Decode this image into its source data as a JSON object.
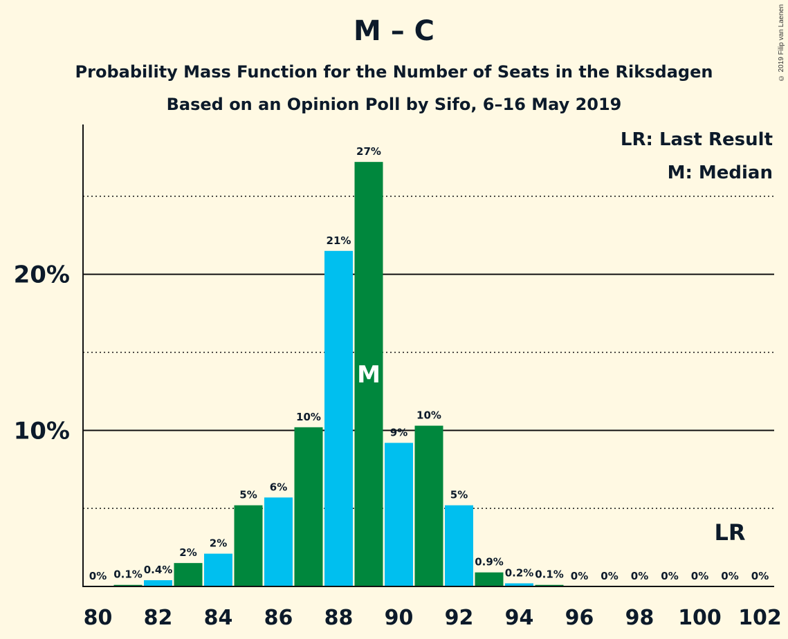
{
  "colors": {
    "background": "#fff9e3",
    "green": "#00873d",
    "blue": "#00bfef",
    "text": "#0c1a2a"
  },
  "copyright": "© 2019 Filip van Laenen",
  "chart_data": {
    "type": "bar",
    "title": "M – C",
    "subtitle": "Probability Mass Function for the Number of Seats in the Riksdagen",
    "subtitle2": "Based on an Opinion Poll by Sifo, 6–16 May 2019",
    "x": [
      80,
      81,
      82,
      83,
      84,
      85,
      86,
      87,
      88,
      89,
      90,
      91,
      92,
      93,
      94,
      95,
      96,
      97,
      98,
      99,
      100,
      101,
      102
    ],
    "values": [
      0,
      0.1,
      0.4,
      1.5,
      2.1,
      5.2,
      5.7,
      10.2,
      21.5,
      27.2,
      9.2,
      10.3,
      5.2,
      0.9,
      0.2,
      0.1,
      0,
      0,
      0,
      0,
      0,
      0,
      0
    ],
    "labels": [
      "0%",
      "0.1%",
      "0.4%",
      "2%",
      "2%",
      "5%",
      "6%",
      "10%",
      "21%",
      "27%",
      "9%",
      "10%",
      "5%",
      "0.9%",
      "0.2%",
      "0.1%",
      "0%",
      "0%",
      "0%",
      "0%",
      "0%",
      "0%",
      "0%"
    ],
    "x_tick_labels": [
      "80",
      "82",
      "84",
      "86",
      "88",
      "90",
      "92",
      "94",
      "96",
      "98",
      "100",
      "102"
    ],
    "y_tick_labels": [
      {
        "value": 10,
        "label": "10%"
      },
      {
        "value": 20,
        "label": "20%"
      }
    ],
    "y_gridlines_dotted": [
      5,
      15,
      25
    ],
    "ylim": [
      0,
      29.6
    ],
    "median_seat": 89,
    "median_label": "M",
    "last_result_seat": 101,
    "last_result_label": "LR",
    "legend": [
      "LR: Last Result",
      "M: Median"
    ],
    "legend_position": "top-right"
  }
}
